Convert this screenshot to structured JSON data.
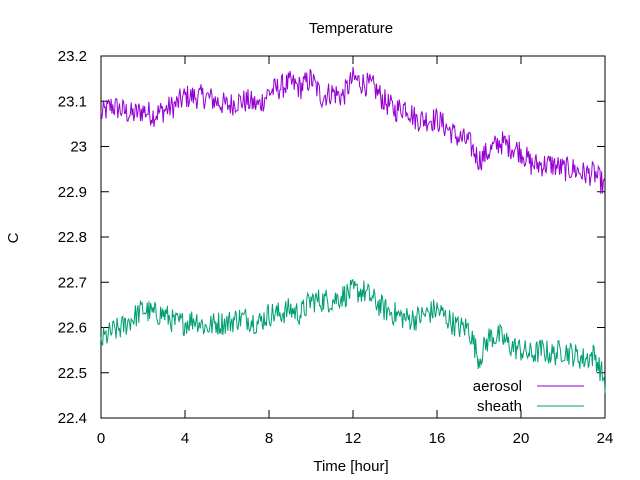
{
  "chart_data": {
    "type": "line",
    "title": "Temperature",
    "xlabel": "Time [hour]",
    "ylabel": "C",
    "xlim": [
      0,
      24
    ],
    "ylim": [
      22.4,
      23.2
    ],
    "xticks": [
      0,
      4,
      8,
      12,
      16,
      20,
      24
    ],
    "yticks": [
      22.4,
      22.5,
      22.6,
      22.7,
      22.8,
      22.9,
      23.0,
      23.1,
      23.2
    ],
    "ytick_labels": [
      "22.4",
      "22.5",
      "22.6",
      "22.7",
      "22.8",
      "22.9",
      "23",
      "23.1",
      "23.2"
    ],
    "grid": false,
    "legend": "bottom-right",
    "series": [
      {
        "name": "aerosol",
        "color": "#9400d3",
        "x": [
          0,
          0.5,
          1,
          1.5,
          2,
          2.5,
          3,
          3.5,
          4,
          4.5,
          5,
          5.5,
          6,
          6.5,
          7,
          7.5,
          8,
          8.5,
          9,
          9.5,
          10,
          10.5,
          11,
          11.5,
          12,
          12.5,
          13,
          13.5,
          14,
          14.5,
          15,
          15.5,
          16,
          16.5,
          17,
          17.5,
          18,
          18.5,
          19,
          19.5,
          20,
          20.5,
          21,
          21.5,
          22,
          22.5,
          23,
          23.5,
          24
        ],
        "y": [
          23.07,
          23.09,
          23.08,
          23.07,
          23.08,
          23.07,
          23.08,
          23.09,
          23.11,
          23.11,
          23.11,
          23.1,
          23.09,
          23.1,
          23.1,
          23.09,
          23.12,
          23.13,
          23.14,
          23.13,
          23.15,
          23.11,
          23.12,
          23.11,
          23.15,
          23.14,
          23.13,
          23.1,
          23.08,
          23.09,
          23.06,
          23.06,
          23.06,
          23.04,
          23.02,
          23.01,
          22.97,
          22.99,
          23.01,
          23.0,
          22.99,
          22.96,
          22.96,
          22.96,
          22.95,
          22.95,
          22.94,
          22.94,
          22.91
        ]
      },
      {
        "name": "sheath",
        "color": "#009e73",
        "x": [
          0,
          0.5,
          1,
          1.5,
          2,
          2.5,
          3,
          3.5,
          4,
          4.5,
          5,
          5.5,
          6,
          6.5,
          7,
          7.5,
          8,
          8.5,
          9,
          9.5,
          10,
          10.5,
          11,
          11.5,
          12,
          12.5,
          13,
          13.5,
          14,
          14.5,
          15,
          15.5,
          16,
          16.5,
          17,
          17.5,
          18,
          18.5,
          19,
          19.5,
          20,
          20.5,
          21,
          21.5,
          22,
          22.5,
          23,
          23.5,
          24
        ],
        "y": [
          22.57,
          22.59,
          22.6,
          22.62,
          22.64,
          22.63,
          22.63,
          22.61,
          22.61,
          22.62,
          22.6,
          22.61,
          22.61,
          22.62,
          22.62,
          22.61,
          22.63,
          22.63,
          22.64,
          22.63,
          22.66,
          22.66,
          22.66,
          22.67,
          22.68,
          22.68,
          22.66,
          22.64,
          22.63,
          22.62,
          22.62,
          22.63,
          22.64,
          22.62,
          22.6,
          22.6,
          22.53,
          22.58,
          22.58,
          22.56,
          22.55,
          22.54,
          22.55,
          22.54,
          22.55,
          22.54,
          22.53,
          22.54,
          22.48
        ]
      }
    ]
  }
}
